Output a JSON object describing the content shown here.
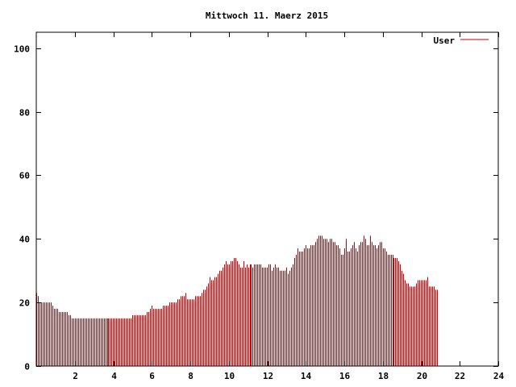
{
  "chart_data": {
    "type": "bar",
    "title": "Mittwoch 11. Maerz 2015",
    "xlabel": "",
    "ylabel": "",
    "xlim": [
      0,
      24
    ],
    "ylim": [
      0,
      105
    ],
    "xticks": [
      2,
      4,
      6,
      8,
      10,
      12,
      14,
      16,
      18,
      20,
      22,
      24
    ],
    "yticks": [
      0,
      20,
      40,
      60,
      80,
      100
    ],
    "legend": {
      "position": "top-right"
    },
    "series": [
      {
        "name": "User",
        "color": "#cc0000",
        "x_start": 0,
        "x_step": 0.0833,
        "values": [
          23,
          22,
          20,
          20,
          20,
          20,
          20,
          20,
          20,
          20,
          19,
          18,
          18,
          18,
          17,
          17,
          17,
          17,
          17,
          17,
          16,
          16,
          15,
          15,
          15,
          15,
          15,
          15,
          15,
          15,
          15,
          15,
          15,
          15,
          15,
          15,
          15,
          15,
          15,
          15,
          15,
          15,
          15,
          15,
          15,
          15,
          15,
          15,
          15,
          15,
          15,
          15,
          15,
          15,
          15,
          15,
          15,
          15,
          15,
          15,
          16,
          16,
          16,
          16,
          16,
          16,
          16,
          16,
          16,
          17,
          17,
          18,
          19,
          18,
          18,
          18,
          18,
          18,
          18,
          19,
          19,
          19,
          19,
          20,
          20,
          20,
          20,
          20,
          21,
          21,
          22,
          22,
          22,
          23,
          21,
          21,
          21,
          21,
          21,
          22,
          22,
          22,
          22,
          23,
          24,
          24,
          25,
          26,
          28,
          27,
          27,
          28,
          28,
          29,
          30,
          30,
          31,
          32,
          33,
          32,
          32,
          33,
          33,
          34,
          34,
          33,
          32,
          31,
          31,
          33,
          31,
          32,
          31,
          32,
          32,
          31,
          32,
          32,
          32,
          32,
          32,
          31,
          31,
          31,
          31,
          32,
          32,
          30,
          31,
          32,
          31,
          31,
          30,
          30,
          30,
          30,
          31,
          29,
          30,
          31,
          32,
          34,
          35,
          37,
          36,
          36,
          36,
          37,
          38,
          37,
          37,
          38,
          38,
          38,
          39,
          40,
          41,
          41,
          41,
          40,
          40,
          40,
          39,
          40,
          40,
          39,
          39,
          38,
          38,
          37,
          35,
          35,
          37,
          40,
          36,
          36,
          37,
          38,
          39,
          37,
          36,
          38,
          39,
          39,
          41,
          40,
          38,
          38,
          41,
          39,
          38,
          38,
          37,
          38,
          39,
          39,
          37,
          37,
          36,
          35,
          35,
          35,
          35,
          34,
          34,
          34,
          33,
          32,
          30,
          29,
          27,
          26,
          26,
          25,
          25,
          25,
          25,
          26,
          27,
          27,
          27,
          27,
          27,
          27,
          28,
          25,
          25,
          25,
          25,
          24,
          24
        ]
      }
    ]
  }
}
